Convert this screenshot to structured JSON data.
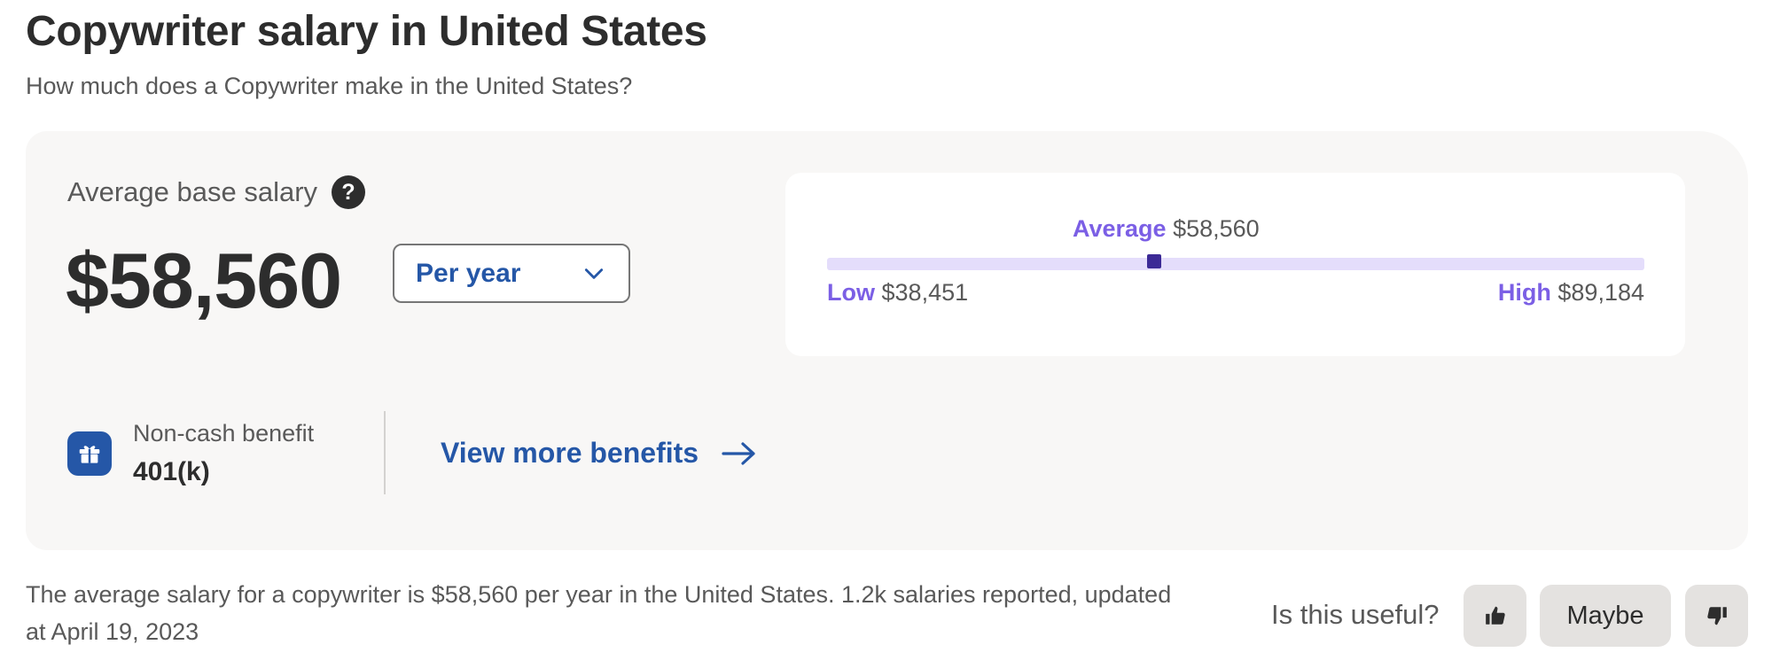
{
  "header": {
    "title": "Copywriter salary in United States",
    "subtitle": "How much does a Copywriter make in the United States?"
  },
  "salary_card": {
    "average_label": "Average base salary",
    "help_icon_glyph": "?",
    "amount": "$58,560",
    "period_select": {
      "selected": "Per year",
      "icon": "chevron-down-icon"
    },
    "range": {
      "average_key": "Average",
      "average_value": "$58,560",
      "low_key": "Low",
      "low_value": "$38,451",
      "high_key": "High",
      "high_value": "$89,184",
      "marker_fraction": 0.4
    },
    "benefit": {
      "icon": "gift-icon",
      "caption": "Non-cash benefit",
      "value": "401(k)"
    },
    "view_more": {
      "label": "View more benefits",
      "icon": "arrow-right-icon"
    }
  },
  "summary": {
    "text": "The average salary for a copywriter is $58,560 per year in the United States.  1.2k salaries reported, updated at April 19, 2023"
  },
  "feedback": {
    "question": "Is this useful?",
    "thumbs_up_icon": "thumbs-up-icon",
    "maybe_label": "Maybe",
    "thumbs_down_icon": "thumbs-down-icon"
  },
  "colors": {
    "accent_blue": "#2557a7",
    "purple_key": "#7b5fe5",
    "range_track": "#e4ddfb",
    "range_marker": "#3c2a96",
    "card_bg": "#f8f7f6"
  }
}
